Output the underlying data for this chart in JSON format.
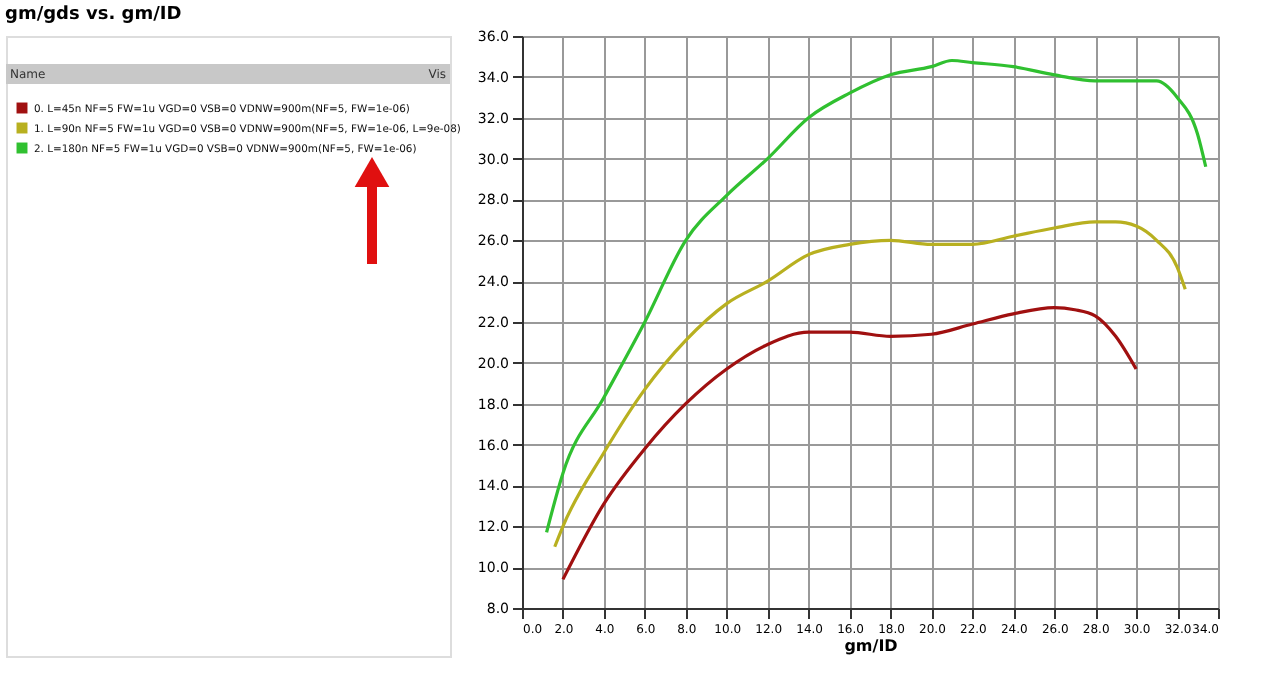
{
  "chart_data": {
    "type": "line",
    "title": "gm/gds vs. gm/ID",
    "xlabel": "gm/ID",
    "legend_title": "Name",
    "annotations": [
      "Vis"
    ],
    "legend": "left",
    "grid": true,
    "xlim": [
      0,
      34
    ],
    "ylim": [
      8,
      36
    ],
    "xticks": [
      {
        "value": 0,
        "label": "0.0"
      },
      {
        "value": 2,
        "label": "2.0"
      },
      {
        "value": 4,
        "label": "4.0"
      },
      {
        "value": 6,
        "label": "6.0"
      },
      {
        "value": 8,
        "label": "8.0"
      },
      {
        "value": 10,
        "label": "10.0"
      },
      {
        "value": 12,
        "label": "12.0"
      },
      {
        "value": 14,
        "label": "14.0"
      },
      {
        "value": 16,
        "label": "16.0"
      },
      {
        "value": 18,
        "label": "18.0"
      },
      {
        "value": 20,
        "label": "20.0"
      },
      {
        "value": 22,
        "label": "22.0"
      },
      {
        "value": 24,
        "label": "24.0"
      },
      {
        "value": 26,
        "label": "26.0"
      },
      {
        "value": 28,
        "label": "28.0"
      },
      {
        "value": 30,
        "label": "30.0"
      },
      {
        "value": 32,
        "label": "32.0"
      },
      {
        "value": 34,
        "label": "34.0"
      }
    ],
    "yticks": [
      {
        "value": 8,
        "label": "8.0"
      },
      {
        "value": 10,
        "label": "10.0"
      },
      {
        "value": 12,
        "label": "12.0"
      },
      {
        "value": 14,
        "label": "14.0"
      },
      {
        "value": 16,
        "label": "16.0"
      },
      {
        "value": 18,
        "label": "18.0"
      },
      {
        "value": 20,
        "label": "20.0"
      },
      {
        "value": 22,
        "label": "22.0"
      },
      {
        "value": 24,
        "label": "24.0"
      },
      {
        "value": 26,
        "label": "26.0"
      },
      {
        "value": 28,
        "label": "28.0"
      },
      {
        "value": 30,
        "label": "30.0"
      },
      {
        "value": 32,
        "label": "32.0"
      },
      {
        "value": 34,
        "label": "34.0"
      },
      {
        "value": 36,
        "label": "36.0"
      }
    ],
    "series": [
      {
        "name": "0. L=45n NF=5 FW=1u VGD=0 VSB=0 VDNW=900m(NF=5, FW=1e-06)",
        "color": "#a01010",
        "x": [
          2,
          4,
          6,
          8,
          10,
          12,
          14,
          16,
          18,
          20,
          22,
          24,
          26,
          27,
          28,
          29,
          30
        ],
        "values": [
          9.4,
          13.1,
          15.8,
          18.0,
          19.7,
          20.9,
          21.5,
          21.5,
          21.3,
          21.4,
          21.9,
          22.4,
          22.7,
          22.6,
          22.3,
          21.3,
          19.7
        ]
      },
      {
        "name": "1. L=90n NF=5 FW=1u VGD=0 VSB=0 VDNW=900m(NF=5, FW=1e-06, L=9e-08)",
        "color": "#b8b020",
        "x": [
          1.6,
          2,
          4,
          6,
          8,
          10,
          12,
          14,
          16,
          18,
          20,
          22,
          24,
          26,
          28,
          29,
          30,
          31,
          32,
          32.4
        ],
        "values": [
          11.0,
          12.0,
          15.6,
          18.7,
          21.1,
          22.9,
          24.0,
          25.3,
          25.8,
          26.0,
          25.8,
          25.8,
          26.2,
          26.6,
          26.9,
          26.9,
          26.7,
          26.0,
          24.7,
          23.6
        ]
      },
      {
        "name": "2. L=180n NF=5 FW=1u VGD=0 VSB=0 VDNW=900m(NF=5, FW=1e-06)",
        "color": "#30c030",
        "x": [
          1.2,
          2,
          4,
          6,
          8,
          10,
          12,
          14,
          16,
          18,
          20,
          21,
          22,
          24,
          26,
          28,
          30,
          31,
          32,
          33,
          33.4
        ],
        "values": [
          11.7,
          14.6,
          18.3,
          22.0,
          26.0,
          28.2,
          30.0,
          32.0,
          33.2,
          34.1,
          34.5,
          34.8,
          34.7,
          34.5,
          34.1,
          33.8,
          33.8,
          33.8,
          33.0,
          31.2,
          29.6
        ]
      }
    ]
  }
}
